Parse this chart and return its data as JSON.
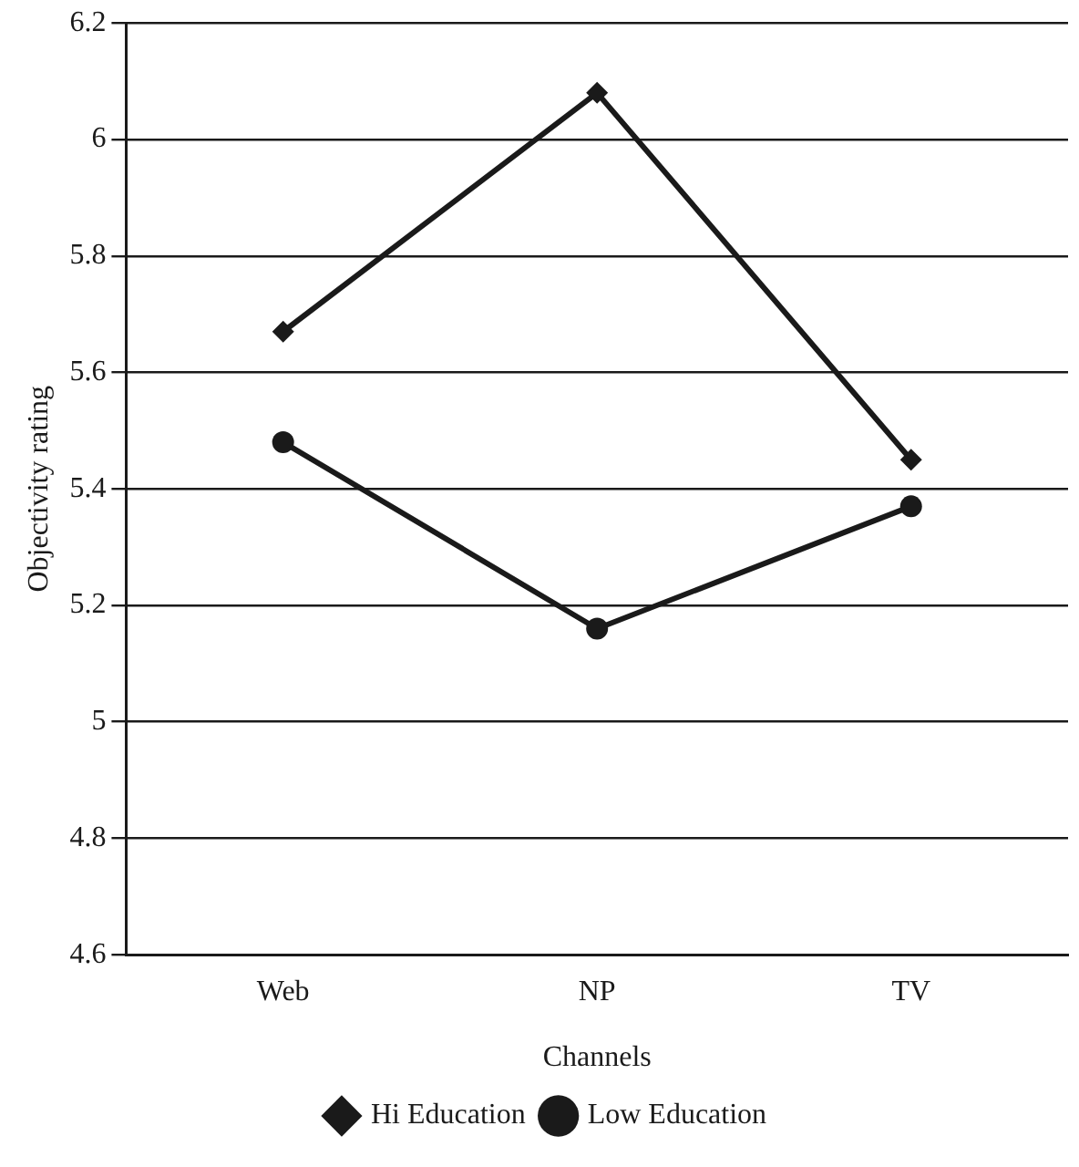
{
  "chart_data": {
    "type": "line",
    "xlabel": "Channels",
    "ylabel": "Objectivity rating",
    "categories": [
      "Web",
      "NP",
      "TV"
    ],
    "series": [
      {
        "name": "Hi Education",
        "color": "#1a1a1a",
        "values": [
          5.67,
          6.08,
          5.45
        ],
        "marker": "diamond"
      },
      {
        "name": "Low Education",
        "color": "#1a1a1a",
        "values": [
          5.48,
          5.16,
          5.37
        ],
        "marker": "circle"
      }
    ],
    "ylim": [
      4.6,
      6.2
    ],
    "yticks": [
      4.6,
      4.8,
      5,
      5.2,
      5.4,
      5.6,
      5.8,
      6,
      6.2
    ],
    "grid": "y",
    "legend": "bottom"
  }
}
